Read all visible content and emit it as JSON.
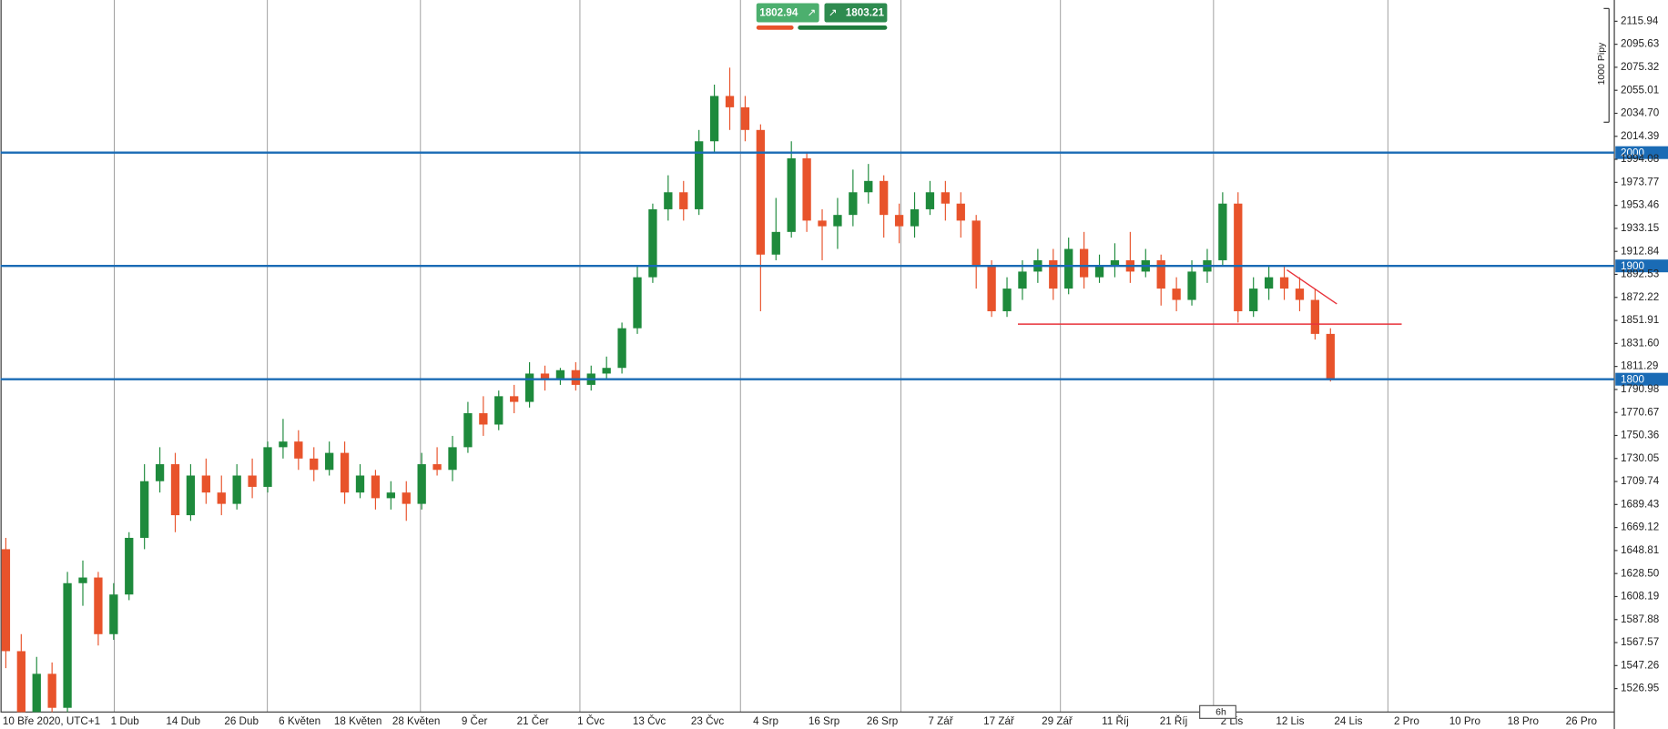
{
  "chart_data": {
    "type": "candlestick",
    "up_color": "#1e8a3c",
    "down_color": "#e8532b",
    "level_color": "#1a6bb5",
    "ylim": [
      1506.3,
      2134.7
    ],
    "yticks": [
      2115.94,
      2095.63,
      2075.32,
      2055.01,
      {
        "value": 2034.7,
        "label": "2034.70"
      },
      2014.39,
      1994.08,
      1973.77,
      1953.46,
      1933.15,
      1912.84,
      1892.53,
      1872.22,
      1851.91,
      {
        "value": 1831.6,
        "label": "1831.60"
      },
      1811.29,
      1790.98,
      1770.67,
      1750.36,
      {
        "value": 1730.05,
        "label": "1730.05"
      },
      1709.74,
      1689.43,
      1669.12,
      1648.81,
      {
        "value": 1628.5,
        "label": "1628.50"
      },
      1608.19,
      1587.88,
      1567.57,
      1547.26,
      1526.95
    ],
    "levels": [
      2000,
      1900,
      1800
    ],
    "x_labels": [
      "10 Bře 2020, UTC+1",
      "1 Dub",
      "14 Dub",
      "26 Dub",
      "6 Květen",
      "18 Květen",
      "28 Květen",
      "9 Čer",
      "21 Čer",
      "1 Čvc",
      "13 Čvc",
      "23 Čvc",
      "4 Srp",
      "16 Srp",
      "26 Srp",
      "7 Zář",
      "17 Zář",
      "29 Zář",
      "11 Říj",
      "21 Říj",
      "2 Lis",
      "12 Lis",
      "24 Lis",
      "2 Pro",
      "10 Pro",
      "18 Pro",
      "26 Pro"
    ],
    "open": [
      1650,
      1560,
      1500,
      1540,
      1510,
      1620,
      1625,
      1575,
      1610,
      1660,
      1710,
      1725,
      1680,
      1715,
      1700,
      1690,
      1715,
      1705,
      1740,
      1745,
      1730,
      1720,
      1735,
      1700,
      1715,
      1695,
      1700,
      1690,
      1725,
      1720,
      1740,
      1770,
      1760,
      1785,
      1780,
      1805,
      1800,
      1808,
      1795,
      1805,
      1810,
      1845,
      1890,
      1950,
      1965,
      1950,
      2010,
      2050,
      2040,
      2020,
      1910,
      1930,
      1995,
      1940,
      1935,
      1945,
      1965,
      1975,
      1945,
      1935,
      1950,
      1965,
      1955,
      1940,
      1900,
      1860,
      1880,
      1895,
      1905,
      1880,
      1915,
      1890,
      1900,
      1905,
      1895,
      1905,
      1880,
      1870,
      1895,
      1905,
      1955,
      1860,
      1880,
      1890,
      1880,
      1870,
      1840
    ],
    "high": [
      1660,
      1575,
      1555,
      1550,
      1630,
      1640,
      1630,
      1620,
      1665,
      1725,
      1740,
      1735,
      1725,
      1730,
      1715,
      1725,
      1730,
      1745,
      1765,
      1755,
      1740,
      1745,
      1745,
      1725,
      1720,
      1710,
      1710,
      1735,
      1740,
      1750,
      1780,
      1785,
      1790,
      1795,
      1815,
      1812,
      1810,
      1815,
      1812,
      1820,
      1850,
      1900,
      1955,
      1980,
      1975,
      2020,
      2060,
      2075,
      2050,
      2025,
      1960,
      2010,
      2000,
      1950,
      1960,
      1985,
      1990,
      1980,
      1955,
      1965,
      1975,
      1975,
      1965,
      1945,
      1905,
      1890,
      1905,
      1915,
      1915,
      1925,
      1930,
      1910,
      1920,
      1930,
      1915,
      1910,
      1890,
      1905,
      1915,
      1965,
      1965,
      1890,
      1900,
      1900,
      1890,
      1880,
      1845
    ],
    "low": [
      1545,
      1490,
      1495,
      1500,
      1505,
      1600,
      1565,
      1570,
      1605,
      1650,
      1700,
      1665,
      1675,
      1690,
      1680,
      1685,
      1695,
      1700,
      1730,
      1720,
      1710,
      1715,
      1690,
      1695,
      1685,
      1685,
      1675,
      1685,
      1715,
      1710,
      1735,
      1750,
      1755,
      1770,
      1775,
      1790,
      1795,
      1790,
      1790,
      1800,
      1805,
      1840,
      1885,
      1940,
      1940,
      1945,
      2000,
      2020,
      2010,
      1860,
      1905,
      1925,
      1930,
      1905,
      1915,
      1935,
      1955,
      1925,
      1920,
      1925,
      1945,
      1940,
      1925,
      1880,
      1855,
      1855,
      1870,
      1885,
      1870,
      1875,
      1880,
      1885,
      1890,
      1885,
      1890,
      1865,
      1860,
      1865,
      1885,
      1900,
      1850,
      1855,
      1870,
      1870,
      1860,
      1835,
      1798
    ],
    "close": [
      1560,
      1500,
      1540,
      1510,
      1620,
      1625,
      1575,
      1610,
      1660,
      1710,
      1725,
      1680,
      1715,
      1700,
      1690,
      1715,
      1705,
      1740,
      1745,
      1730,
      1720,
      1735,
      1700,
      1715,
      1695,
      1700,
      1690,
      1725,
      1720,
      1740,
      1770,
      1760,
      1785,
      1780,
      1805,
      1800,
      1808,
      1795,
      1805,
      1810,
      1845,
      1890,
      1950,
      1965,
      1950,
      2010,
      2050,
      2040,
      2020,
      1910,
      1930,
      1995,
      1940,
      1935,
      1945,
      1965,
      1975,
      1945,
      1935,
      1950,
      1965,
      1955,
      1940,
      1900,
      1860,
      1880,
      1895,
      1905,
      1880,
      1915,
      1890,
      1900,
      1905,
      1895,
      1905,
      1880,
      1870,
      1895,
      1905,
      1955,
      1860,
      1880,
      1890,
      1880,
      1870,
      1840,
      1800
    ]
  },
  "trade_panel": {
    "sell": 1802.94,
    "buy": 1803.21
  },
  "scale_label": "1000 Pipy",
  "timeframe": "6h"
}
